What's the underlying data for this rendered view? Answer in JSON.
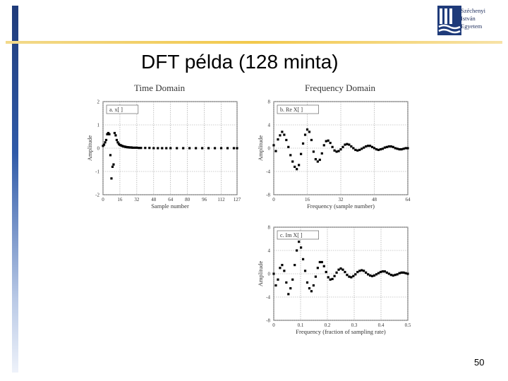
{
  "header": {
    "logo_lines": [
      "Széchenyi",
      "István",
      "Egyetem"
    ],
    "title": "DFT példa (128 minta)",
    "page_number": "50"
  },
  "colors": {
    "left_bar": "#2f5aa8",
    "top_line": "#f2c94c",
    "marker": "#000000",
    "grid": "#999999"
  },
  "chart_data": [
    {
      "type": "scatter",
      "title": "Time Domain",
      "panel_label": "a.  x[ ]",
      "xlabel": "Sample number",
      "ylabel": "Amplitude",
      "xlim": [
        0,
        127
      ],
      "ylim": [
        -2,
        2
      ],
      "xticks": [
        "0",
        "16",
        "32",
        "48",
        "64",
        "80",
        "96",
        "112",
        "127"
      ],
      "xtick_values": [
        0,
        16,
        32,
        48,
        64,
        80,
        96,
        112,
        127
      ],
      "yticks": [
        "2",
        "1",
        "0",
        "-1",
        "-2"
      ],
      "ytick_values": [
        2,
        1,
        0,
        -1,
        -2
      ],
      "x": [
        0,
        1,
        2,
        3,
        4,
        5,
        6,
        7,
        8,
        9,
        10,
        11,
        12,
        13,
        14,
        15,
        16,
        17,
        18,
        19,
        20,
        21,
        22,
        23,
        24,
        25,
        26,
        27,
        28,
        30,
        32,
        34,
        36,
        40,
        44,
        48,
        52,
        56,
        60,
        64,
        70,
        76,
        82,
        88,
        94,
        100,
        106,
        112,
        118,
        124,
        127
      ],
      "y": [
        0.1,
        0.15,
        0.25,
        0.35,
        0.6,
        0.65,
        0.6,
        -0.3,
        -1.3,
        -0.8,
        -0.7,
        0.65,
        0.55,
        0.35,
        0.25,
        0.18,
        0.14,
        0.12,
        0.1,
        0.08,
        0.07,
        0.06,
        0.05,
        0.04,
        0.04,
        0.03,
        0.03,
        0.03,
        0.02,
        0.02,
        0.02,
        0.01,
        0.01,
        0.01,
        0.01,
        0.0,
        0.0,
        0.0,
        0.0,
        0.0,
        0.0,
        0.0,
        0.0,
        0.0,
        0.0,
        0.0,
        0.0,
        0.0,
        0.0,
        0.0,
        0.0
      ]
    },
    {
      "type": "scatter",
      "title": "Frequency Domain",
      "panel_label": "b.  Re X[ ]",
      "xlabel": "Frequency (sample number)",
      "ylabel": "Amplitude",
      "xlim": [
        0,
        64
      ],
      "ylim": [
        -8,
        8
      ],
      "xticks": [
        "0",
        "16",
        "32",
        "48",
        "64"
      ],
      "xtick_values": [
        0,
        16,
        32,
        48,
        64
      ],
      "yticks": [
        "8",
        "4",
        "0",
        "-4",
        "-8"
      ],
      "ytick_values": [
        8,
        4,
        0,
        -4,
        -8
      ],
      "x": [
        0,
        1,
        2,
        3,
        4,
        5,
        6,
        7,
        8,
        9,
        10,
        11,
        12,
        13,
        14,
        15,
        16,
        17,
        18,
        19,
        20,
        21,
        22,
        23,
        24,
        25,
        26,
        27,
        28,
        29,
        30,
        31,
        32,
        33,
        34,
        35,
        36,
        37,
        38,
        39,
        40,
        41,
        42,
        43,
        44,
        45,
        46,
        47,
        48,
        49,
        50,
        51,
        52,
        53,
        54,
        55,
        56,
        57,
        58,
        59,
        60,
        61,
        62,
        63,
        64
      ],
      "y": [
        0.5,
        -0.5,
        1.5,
        2.2,
        2.8,
        2.3,
        1.4,
        0.2,
        -1.2,
        -2.3,
        -3.2,
        -3.6,
        -2.9,
        -1.0,
        0.8,
        2.3,
        3.2,
        2.8,
        1.4,
        -0.6,
        -1.9,
        -2.3,
        -2.0,
        -0.9,
        0.5,
        1.2,
        1.3,
        0.9,
        0.2,
        -0.4,
        -0.6,
        -0.5,
        -0.2,
        0.2,
        0.6,
        0.7,
        0.6,
        0.3,
        0.0,
        -0.3,
        -0.4,
        -0.3,
        -0.1,
        0.1,
        0.3,
        0.4,
        0.4,
        0.2,
        0.0,
        -0.2,
        -0.3,
        -0.2,
        -0.1,
        0.1,
        0.2,
        0.3,
        0.3,
        0.2,
        0.0,
        -0.1,
        -0.2,
        -0.2,
        -0.1,
        0.0,
        0.0
      ]
    },
    {
      "type": "scatter",
      "title": "",
      "panel_label": "c.  Im X[ ]",
      "xlabel": "Frequency (fraction of sampling rate)",
      "ylabel": "Amplitude",
      "xlim": [
        0,
        0.5
      ],
      "ylim": [
        -8,
        8
      ],
      "xticks": [
        "0",
        "0.1",
        "0.2",
        "0.3",
        "0.4",
        "0.5"
      ],
      "xtick_values": [
        0,
        0.1,
        0.2,
        0.3,
        0.4,
        0.5
      ],
      "yticks": [
        "8",
        "4",
        "0",
        "-4",
        "-8"
      ],
      "ytick_values": [
        8,
        4,
        0,
        -4,
        -8
      ],
      "x": [
        0.0,
        0.0078,
        0.0156,
        0.0234,
        0.0313,
        0.0391,
        0.0469,
        0.0547,
        0.0625,
        0.0703,
        0.0781,
        0.0859,
        0.0938,
        0.1016,
        0.1094,
        0.1172,
        0.125,
        0.1328,
        0.1406,
        0.1484,
        0.1563,
        0.1641,
        0.1719,
        0.1797,
        0.1875,
        0.1953,
        0.2031,
        0.2109,
        0.2188,
        0.2266,
        0.2344,
        0.2422,
        0.25,
        0.2578,
        0.2656,
        0.2734,
        0.2813,
        0.2891,
        0.2969,
        0.3047,
        0.3125,
        0.3203,
        0.3281,
        0.3359,
        0.3438,
        0.3516,
        0.3594,
        0.3672,
        0.375,
        0.3828,
        0.3906,
        0.3984,
        0.4063,
        0.4141,
        0.4219,
        0.4297,
        0.4375,
        0.4453,
        0.4531,
        0.4609,
        0.4688,
        0.4766,
        0.4844,
        0.4922,
        0.5
      ],
      "y": [
        0.0,
        -2.0,
        -1.0,
        1.0,
        1.5,
        0.5,
        -1.5,
        -3.5,
        -2.5,
        -1.0,
        1.5,
        4.0,
        5.5,
        4.5,
        2.5,
        0.5,
        -1.5,
        -2.5,
        -3.0,
        -2.0,
        -0.5,
        1.0,
        2.0,
        2.0,
        1.3,
        0.3,
        -0.6,
        -1.0,
        -0.9,
        -0.4,
        0.2,
        0.7,
        0.9,
        0.7,
        0.3,
        -0.2,
        -0.5,
        -0.6,
        -0.4,
        -0.1,
        0.3,
        0.5,
        0.6,
        0.5,
        0.2,
        -0.1,
        -0.3,
        -0.4,
        -0.3,
        -0.1,
        0.1,
        0.3,
        0.4,
        0.4,
        0.2,
        0.0,
        -0.2,
        -0.3,
        -0.2,
        -0.1,
        0.1,
        0.2,
        0.2,
        0.1,
        0.0
      ]
    }
  ]
}
